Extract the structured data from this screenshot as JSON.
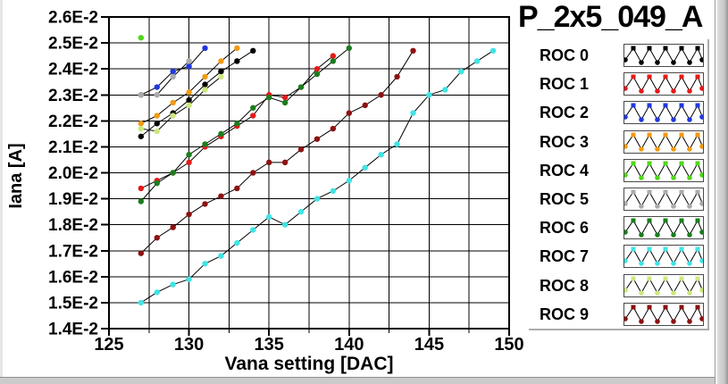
{
  "chart_data": {
    "type": "line",
    "title": "P_2x5_049_A",
    "xlabel": "Vana setting [DAC]",
    "ylabel": "Iana [A]",
    "y_unit_note": "y values are in units of 1E-2 A",
    "xlim": [
      125,
      150
    ],
    "ylim_e2": [
      1.4,
      2.6
    ],
    "x_major_ticks": [
      125,
      130,
      135,
      140,
      145,
      150
    ],
    "x_minor_step": 2.5,
    "grid": true,
    "legend_position": "right",
    "line_color": "#000000",
    "y_ticks": [
      {
        "label": "2.6E-2",
        "value": 2.6
      },
      {
        "label": "2.5E-2",
        "value": 2.5
      },
      {
        "label": "2.4E-2",
        "value": 2.4
      },
      {
        "label": "2.3E-2",
        "value": 2.3
      },
      {
        "label": "2.2E-2",
        "value": 2.2
      },
      {
        "label": "2.1E-2",
        "value": 2.1
      },
      {
        "label": "2.0E-2",
        "value": 2.0
      },
      {
        "label": "1.9E-2",
        "value": 1.9
      },
      {
        "label": "1.8E-2",
        "value": 1.8
      },
      {
        "label": "1.7E-2",
        "value": 1.7
      },
      {
        "label": "1.6E-2",
        "value": 1.6
      },
      {
        "label": "1.5E-2",
        "value": 1.5
      },
      {
        "label": "1.4E-2",
        "value": 1.4
      }
    ],
    "series": [
      {
        "name": "ROC 0",
        "color": "#000000",
        "points": [
          [
            127,
            2.14
          ],
          [
            128,
            2.19
          ],
          [
            129,
            2.23
          ],
          [
            130,
            2.28
          ],
          [
            131,
            2.34
          ],
          [
            132,
            2.39
          ],
          [
            133,
            2.43
          ],
          [
            134,
            2.47
          ]
        ]
      },
      {
        "name": "ROC 1",
        "color": "#e51919",
        "points": [
          [
            127,
            1.94
          ],
          [
            128,
            1.97
          ],
          [
            129,
            2.0
          ],
          [
            130,
            2.04
          ],
          [
            131,
            2.1
          ],
          [
            132,
            2.14
          ],
          [
            133,
            2.18
          ],
          [
            134,
            2.22
          ],
          [
            135,
            2.3
          ],
          [
            136,
            2.29
          ],
          [
            137,
            2.33
          ],
          [
            138,
            2.4
          ],
          [
            139,
            2.45
          ]
        ]
      },
      {
        "name": "ROC 2",
        "color": "#2138e0",
        "points": [
          [
            127,
            2.3
          ],
          [
            128,
            2.33
          ],
          [
            129,
            2.39
          ],
          [
            130,
            2.41
          ],
          [
            131,
            2.48
          ]
        ]
      },
      {
        "name": "ROC 3",
        "color": "#f29a11",
        "points": [
          [
            127,
            2.19
          ],
          [
            128,
            2.22
          ],
          [
            129,
            2.27
          ],
          [
            130,
            2.31
          ],
          [
            131,
            2.37
          ],
          [
            132,
            2.43
          ],
          [
            133,
            2.48
          ]
        ]
      },
      {
        "name": "ROC 4",
        "color": "#4fd61a",
        "points": [
          [
            127,
            2.52
          ]
        ]
      },
      {
        "name": "ROC 5",
        "color": "#ababab",
        "points": [
          [
            127,
            2.3
          ],
          [
            128,
            2.3
          ],
          [
            129,
            2.37
          ],
          [
            130,
            2.43
          ]
        ]
      },
      {
        "name": "ROC 6",
        "color": "#1a7d1d",
        "points": [
          [
            127,
            1.89
          ],
          [
            128,
            1.96
          ],
          [
            129,
            2.0
          ],
          [
            130,
            2.07
          ],
          [
            131,
            2.11
          ],
          [
            132,
            2.15
          ],
          [
            133,
            2.19
          ],
          [
            134,
            2.25
          ],
          [
            135,
            2.29
          ],
          [
            136,
            2.27
          ],
          [
            137,
            2.33
          ],
          [
            138,
            2.38
          ],
          [
            139,
            2.43
          ],
          [
            140,
            2.48
          ]
        ]
      },
      {
        "name": "ROC 7",
        "color": "#3fe4e4",
        "points": [
          [
            127,
            1.5
          ],
          [
            128,
            1.54
          ],
          [
            129,
            1.57
          ],
          [
            130,
            1.59
          ],
          [
            131,
            1.65
          ],
          [
            132,
            1.68
          ],
          [
            133,
            1.73
          ],
          [
            134,
            1.78
          ],
          [
            135,
            1.83
          ],
          [
            136,
            1.8
          ],
          [
            137,
            1.85
          ],
          [
            138,
            1.9
          ],
          [
            139,
            1.93
          ],
          [
            140,
            1.97
          ],
          [
            141,
            2.02
          ],
          [
            142,
            2.07
          ],
          [
            143,
            2.11
          ],
          [
            144,
            2.23
          ],
          [
            145,
            2.3
          ],
          [
            146,
            2.32
          ],
          [
            147,
            2.39
          ],
          [
            148,
            2.43
          ],
          [
            149,
            2.47
          ]
        ]
      },
      {
        "name": "ROC 8",
        "color": "#cce87d",
        "points": [
          [
            127,
            2.17
          ],
          [
            128,
            2.16
          ],
          [
            129,
            2.22
          ],
          [
            130,
            2.26
          ],
          [
            131,
            2.32
          ],
          [
            132,
            2.37
          ]
        ]
      },
      {
        "name": "ROC 9",
        "color": "#8c1111",
        "points": [
          [
            127,
            1.69
          ],
          [
            128,
            1.75
          ],
          [
            129,
            1.79
          ],
          [
            130,
            1.84
          ],
          [
            131,
            1.88
          ],
          [
            132,
            1.91
          ],
          [
            133,
            1.94
          ],
          [
            134,
            2.0
          ],
          [
            135,
            2.04
          ],
          [
            136,
            2.04
          ],
          [
            137,
            2.09
          ],
          [
            138,
            2.13
          ],
          [
            139,
            2.17
          ],
          [
            140,
            2.23
          ],
          [
            141,
            2.26
          ],
          [
            142,
            2.3
          ],
          [
            143,
            2.37
          ],
          [
            144,
            2.47
          ]
        ]
      }
    ]
  }
}
